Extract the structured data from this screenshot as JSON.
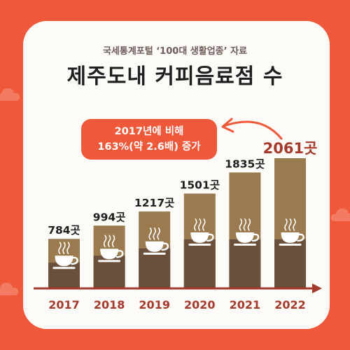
{
  "header": {
    "subtitle": "국세통계포털 ‘100대 생활업종’ 자료",
    "title": "제주도내 커피음료점 수"
  },
  "callout": {
    "line1": "2017년에 비해",
    "line2": "163%(약 2.6배) 증가"
  },
  "colors": {
    "background": "#f0583a",
    "card": "#fdfbf8",
    "bar_top": "#9a7a4e",
    "bar_bottom": "#6a4f3a",
    "axis": "#a53a2c",
    "year_label": "#a53a2c",
    "highlight_label": "#a53a2c",
    "value_label": "#1f1f1f",
    "cup_icon": "#ffffff"
  },
  "icons": [
    "coffee-cup-icon",
    "curved-arrow-icon",
    "cloud-icon"
  ],
  "chart_data": {
    "type": "bar",
    "categories": [
      "2017",
      "2018",
      "2019",
      "2020",
      "2021",
      "2022"
    ],
    "values": [
      784,
      994,
      1217,
      1501,
      1835,
      2061
    ],
    "value_labels": [
      "784곳",
      "994곳",
      "1217곳",
      "1501곳",
      "1835곳",
      "2061곳"
    ],
    "title": "제주도내 커피음료점 수",
    "xlabel": "",
    "ylabel": "",
    "ylim": [
      0,
      2061
    ],
    "grid": false,
    "legend": "none",
    "highlight_category": "2022"
  }
}
